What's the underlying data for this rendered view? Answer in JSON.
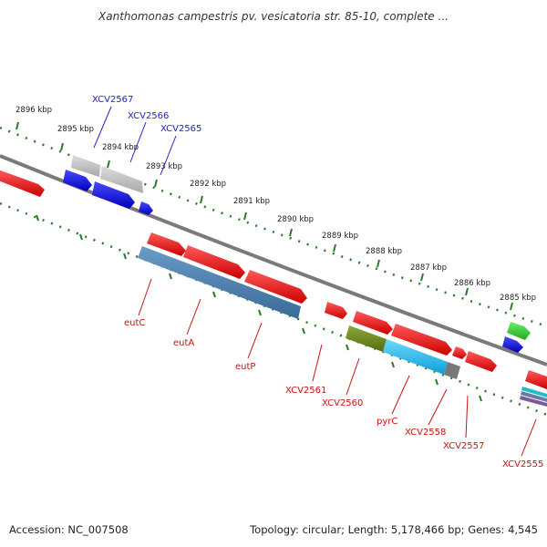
{
  "title": "Xanthomonas campestris pv. vesicatoria str. 85-10, complete ...",
  "footer": {
    "accession": "Accession: NC_007508",
    "topology": "Topology: circular; Length: 5,178,466 bp; Genes: 4,545"
  },
  "colors": {
    "backbone": "#7a7a7a",
    "tick": "#2a7a2a",
    "label_blue": "#2222cc",
    "label_red": "#cc1111",
    "gene_red": "#ee1111",
    "gene_blue": "#1818dd",
    "gene_gray": "#bbbbbb",
    "gene_steel": "#4a7fb0",
    "gene_olive": "#6e8a1c",
    "gene_cyan": "#22bbee",
    "gene_darkgray": "#777777",
    "gene_green": "#33cc33"
  },
  "kbp_ticks": [
    "2896 kbp",
    "2895 kbp",
    "2894 kbp",
    "2893 kbp",
    "2892 kbp",
    "2891 kbp",
    "2890 kbp",
    "2889 kbp",
    "2888 kbp",
    "2887 kbp",
    "2886 kbp",
    "2885 kbp"
  ],
  "gene_labels": {
    "xcv2567": "XCV2567",
    "xcv2566": "XCV2566",
    "xcv2565": "XCV2565",
    "eutC": "eutC",
    "eutA": "eutA",
    "eutP": "eutP",
    "xcv2561": "XCV2561",
    "xcv2560": "XCV2560",
    "pyrC": "pyrC",
    "xcv2558": "XCV2558",
    "xcv2557": "XCV2557",
    "xcv2555": "XCV2555"
  }
}
